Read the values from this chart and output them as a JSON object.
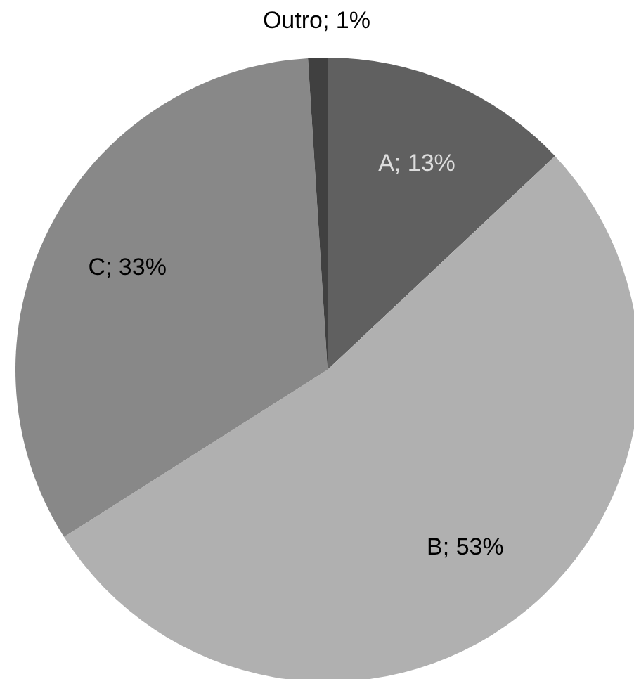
{
  "chart_data": {
    "type": "pie",
    "categories": [
      "A",
      "B",
      "C",
      "Outro"
    ],
    "values": [
      13,
      53,
      33,
      1
    ],
    "colors": [
      "#606060",
      "#b0b0b0",
      "#888888",
      "#404040"
    ],
    "value_labels": [
      "13%",
      "53%",
      "33%",
      "1%"
    ]
  }
}
